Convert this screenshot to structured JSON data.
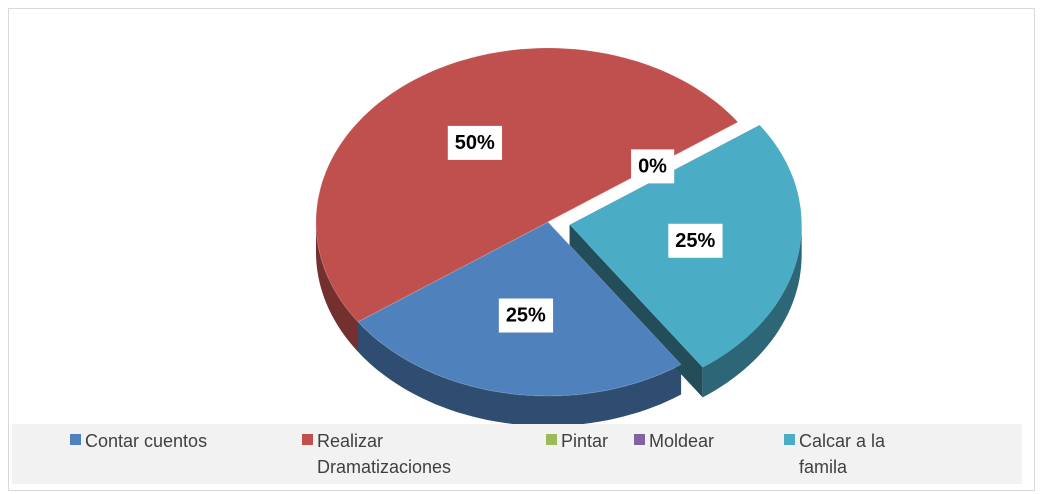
{
  "chart_data": {
    "type": "pie",
    "categories": [
      "Contar cuentos",
      "Realizar Dramatizaciones",
      "Pintar",
      "Moldear",
      "Calcar a la famila"
    ],
    "values": [
      25,
      50,
      0,
      0,
      25
    ],
    "value_labels": [
      "25%",
      "50%",
      null,
      "0%",
      "25%"
    ],
    "colors": [
      "#4f81bd",
      "#c0504d",
      "#9bbb59",
      "#8064a2",
      "#4bacc6"
    ],
    "exploded": [
      false,
      false,
      false,
      false,
      true
    ],
    "legend": "bottom"
  }
}
